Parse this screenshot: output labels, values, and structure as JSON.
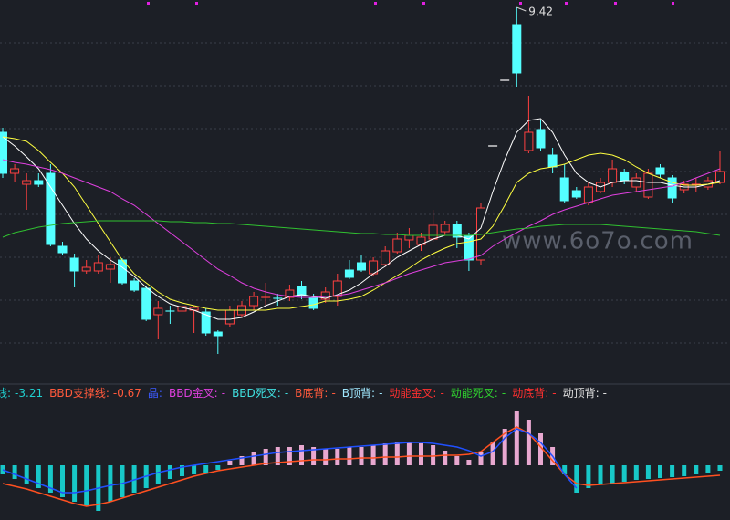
{
  "chart_data": [
    {
      "type": "candlestick",
      "watermark": "www.6o7o.com",
      "up_color": "#ff4040",
      "down_color": "#54ffff",
      "ylim": [
        5.3,
        9.5
      ],
      "open": [
        8.05,
        7.6,
        7.48,
        7.52,
        7.6,
        6.8,
        6.67,
        6.53,
        6.53,
        6.55,
        6.65,
        6.42,
        6.34,
        6.05,
        6.1,
        6.09,
        6.1,
        6.08,
        5.86,
        5.95,
        6.05,
        6.15,
        6.23,
        6.24,
        6.24,
        6.36,
        6.24,
        6.22,
        6.25,
        6.54,
        6.62,
        6.5,
        6.6,
        6.74,
        6.87,
        6.82,
        6.88,
        6.96,
        7.04,
        6.92,
        6.65,
        7.9,
        8.62,
        9.23,
        7.85,
        8.08,
        7.8,
        7.55,
        7.41,
        7.28,
        7.4,
        7.5,
        7.61,
        7.45,
        7.34,
        7.66,
        7.55,
        7.42,
        7.47,
        7.45,
        7.5
      ],
      "high": [
        8.1,
        7.7,
        7.6,
        7.6,
        7.7,
        6.85,
        6.72,
        6.65,
        6.7,
        6.68,
        6.67,
        6.45,
        6.36,
        6.2,
        6.15,
        6.2,
        6.15,
        6.12,
        5.88,
        6.15,
        6.2,
        6.3,
        6.4,
        6.28,
        6.38,
        6.42,
        6.28,
        6.35,
        6.5,
        6.65,
        6.7,
        6.68,
        6.8,
        6.95,
        7.0,
        6.95,
        7.2,
        7.08,
        7.08,
        6.95,
        7.28,
        7.9,
        8.62,
        9.42,
        8.45,
        8.18,
        7.88,
        7.7,
        7.45,
        7.5,
        7.55,
        7.75,
        7.65,
        7.6,
        7.65,
        7.7,
        7.58,
        7.52,
        7.55,
        7.56,
        7.85
      ],
      "low": [
        7.55,
        7.5,
        7.2,
        7.45,
        6.8,
        6.7,
        6.35,
        6.5,
        6.5,
        6.4,
        6.38,
        6.3,
        5.98,
        5.78,
        5.95,
        5.98,
        5.85,
        5.82,
        5.62,
        5.92,
        6.02,
        6.1,
        6.15,
        6.15,
        6.2,
        6.22,
        6.1,
        6.18,
        6.15,
        6.44,
        6.52,
        6.48,
        6.58,
        6.72,
        6.78,
        6.75,
        6.85,
        6.92,
        6.78,
        6.53,
        6.6,
        7.9,
        8.62,
        8.55,
        7.82,
        7.85,
        7.6,
        7.28,
        7.32,
        7.25,
        7.38,
        7.45,
        7.48,
        7.4,
        7.32,
        7.55,
        7.28,
        7.38,
        7.4,
        7.42,
        7.48
      ],
      "close": [
        7.6,
        7.65,
        7.52,
        7.48,
        6.82,
        6.73,
        6.53,
        6.57,
        6.62,
        6.6,
        6.4,
        6.32,
        6.0,
        6.12,
        6.09,
        6.14,
        6.13,
        5.85,
        5.82,
        6.1,
        6.15,
        6.25,
        6.24,
        6.23,
        6.32,
        6.26,
        6.12,
        6.3,
        6.42,
        6.46,
        6.54,
        6.64,
        6.75,
        6.88,
        6.92,
        6.9,
        7.03,
        7.04,
        6.9,
        6.65,
        7.22,
        7.9,
        8.62,
        8.7,
        8.05,
        7.88,
        7.67,
        7.3,
        7.34,
        7.45,
        7.5,
        7.65,
        7.52,
        7.55,
        7.6,
        7.59,
        7.33,
        7.48,
        7.48,
        7.52,
        7.62
      ],
      "lines": [
        {
          "color": "#ffffff",
          "values": [
            8.0,
            7.9,
            7.78,
            7.65,
            7.45,
            7.25,
            7.05,
            6.88,
            6.75,
            6.65,
            6.57,
            6.47,
            6.35,
            6.25,
            6.17,
            6.13,
            6.1,
            6.05,
            6.0,
            6.0,
            6.02,
            6.08,
            6.15,
            6.2,
            6.25,
            6.27,
            6.25,
            6.23,
            6.27,
            6.32,
            6.4,
            6.5,
            6.58,
            6.68,
            6.75,
            6.82,
            6.88,
            6.92,
            6.92,
            6.88,
            7.0,
            7.4,
            7.75,
            8.05,
            8.18,
            8.2,
            8.05,
            7.8,
            7.6,
            7.5,
            7.45,
            7.5,
            7.52,
            7.52,
            7.5,
            7.5,
            7.47,
            7.45,
            7.45,
            7.48,
            7.52
          ]
        },
        {
          "color": "#ffff40",
          "values": [
            8.0,
            7.98,
            7.95,
            7.85,
            7.72,
            7.6,
            7.45,
            7.25,
            7.05,
            6.85,
            6.65,
            6.5,
            6.4,
            6.3,
            6.22,
            6.18,
            6.15,
            6.12,
            6.1,
            6.1,
            6.1,
            6.1,
            6.1,
            6.12,
            6.12,
            6.14,
            6.16,
            6.2,
            6.2,
            6.22,
            6.25,
            6.32,
            6.4,
            6.48,
            6.56,
            6.65,
            6.72,
            6.78,
            6.83,
            6.85,
            6.88,
            7.02,
            7.25,
            7.5,
            7.6,
            7.65,
            7.67,
            7.7,
            7.75,
            7.8,
            7.82,
            7.8,
            7.75,
            7.67,
            7.6,
            7.55,
            7.5,
            7.47,
            7.47,
            7.48,
            7.5
          ]
        },
        {
          "color": "#e040e0",
          "values": [
            7.75,
            7.72,
            7.7,
            7.67,
            7.64,
            7.6,
            7.55,
            7.5,
            7.45,
            7.4,
            7.32,
            7.25,
            7.15,
            7.05,
            6.95,
            6.85,
            6.75,
            6.65,
            6.55,
            6.48,
            6.4,
            6.34,
            6.3,
            6.27,
            6.25,
            6.24,
            6.24,
            6.25,
            6.26,
            6.28,
            6.32,
            6.36,
            6.4,
            6.45,
            6.5,
            6.54,
            6.58,
            6.62,
            6.64,
            6.66,
            6.7,
            6.8,
            6.88,
            6.95,
            7.02,
            7.08,
            7.15,
            7.2,
            7.24,
            7.28,
            7.32,
            7.36,
            7.38,
            7.4,
            7.42,
            7.44,
            7.46,
            7.5,
            7.55,
            7.6,
            7.65
          ]
        },
        {
          "color": "#30c030",
          "values": [
            6.9,
            6.95,
            6.98,
            7.01,
            7.03,
            7.05,
            7.06,
            7.07,
            7.08,
            7.08,
            7.08,
            7.08,
            7.08,
            7.08,
            7.07,
            7.07,
            7.06,
            7.06,
            7.05,
            7.05,
            7.04,
            7.03,
            7.02,
            7.01,
            7.0,
            6.99,
            6.98,
            6.97,
            6.96,
            6.95,
            6.94,
            6.94,
            6.93,
            6.93,
            6.92,
            6.92,
            6.92,
            6.92,
            6.92,
            6.92,
            6.93,
            6.95,
            6.97,
            6.99,
            7.0,
            7.02,
            7.03,
            7.04,
            7.04,
            7.04,
            7.04,
            7.03,
            7.02,
            7.01,
            7.0,
            6.99,
            6.98,
            6.97,
            6.96,
            6.94,
            6.92
          ]
        }
      ]
    },
    {
      "type": "bar",
      "legend": [
        {
          "name": "线:",
          "value": -3.21,
          "color": "#20d0d0"
        },
        {
          "name": "BBD支撑线:",
          "value": -0.67,
          "color": "#ff5a3c"
        },
        {
          "name": "晶:",
          "value": "",
          "color": "#3c5aff"
        },
        {
          "name": "BBD金叉:",
          "value": "-",
          "color": "#e040e0"
        },
        {
          "name": "BBD死叉:",
          "value": "-",
          "color": "#40e0e0"
        },
        {
          "name": "B底背:",
          "value": "-",
          "color": "#ff5a3c"
        },
        {
          "name": "B顶背:",
          "value": "-",
          "color": "#a0e8ff"
        },
        {
          "name": "动能金叉:",
          "value": "-",
          "color": "#ff3030"
        },
        {
          "name": "动能死叉:",
          "value": "-",
          "color": "#30d030"
        },
        {
          "name": "动底背:",
          "value": "-",
          "color": "#ff3030"
        },
        {
          "name": "动顶背:",
          "value": "-",
          "color": "#e0e0e0"
        }
      ],
      "pos_color": "#e8a8d0",
      "neg_color": "#18c8c8",
      "ylim": [
        -6,
        7
      ],
      "values": [
        -1.0,
        -1.5,
        -2.0,
        -2.5,
        -3.0,
        -3.5,
        -4.0,
        -4.5,
        -5.0,
        -4.0,
        -3.5,
        -3.0,
        -2.5,
        -2.0,
        -1.5,
        -1.2,
        -1.0,
        -0.8,
        -0.5,
        0.5,
        1.0,
        1.5,
        1.8,
        2.0,
        2.0,
        2.2,
        2.0,
        1.8,
        1.8,
        2.0,
        2.0,
        2.2,
        2.4,
        2.6,
        2.6,
        2.4,
        2.2,
        1.6,
        1.0,
        0.6,
        1.5,
        2.5,
        4.0,
        6.0,
        5.0,
        3.5,
        2.0,
        -1.0,
        -3.0,
        -2.5,
        -2.0,
        -2.0,
        -1.8,
        -1.6,
        -1.5,
        -1.4,
        -1.3,
        -1.2,
        -1.0,
        -0.8,
        -0.6
      ],
      "lines": [
        {
          "color": "#ff5020",
          "values": [
            -2.0,
            -2.3,
            -2.6,
            -3.0,
            -3.4,
            -3.8,
            -4.2,
            -4.5,
            -4.3,
            -4.0,
            -3.6,
            -3.2,
            -2.8,
            -2.4,
            -2.0,
            -1.6,
            -1.2,
            -0.9,
            -0.6,
            -0.4,
            -0.2,
            0.0,
            0.2,
            0.3,
            0.4,
            0.5,
            0.6,
            0.6,
            0.7,
            0.7,
            0.8,
            0.8,
            0.9,
            0.9,
            1.0,
            1.0,
            1.0,
            1.1,
            1.1,
            1.2,
            1.5,
            2.5,
            3.5,
            4.2,
            3.5,
            2.0,
            0.5,
            -1.0,
            -2.0,
            -2.2,
            -2.1,
            -2.0,
            -1.9,
            -1.8,
            -1.7,
            -1.6,
            -1.5,
            -1.4,
            -1.3,
            -1.2,
            -1.1
          ]
        },
        {
          "color": "#2050ff",
          "values": [
            -0.5,
            -1.0,
            -1.5,
            -2.0,
            -2.5,
            -3.0,
            -3.0,
            -2.8,
            -2.5,
            -2.2,
            -2.0,
            -1.6,
            -1.2,
            -0.8,
            -0.5,
            -0.2,
            0.0,
            0.2,
            0.4,
            0.6,
            0.8,
            1.0,
            1.2,
            1.4,
            1.5,
            1.6,
            1.7,
            1.8,
            1.9,
            2.0,
            2.1,
            2.2,
            2.3,
            2.4,
            2.5,
            2.5,
            2.4,
            2.2,
            2.0,
            1.6,
            1.0,
            1.5,
            3.0,
            4.0,
            3.5,
            2.5,
            1.0,
            -1.0,
            -2.5,
            null,
            null,
            null,
            null,
            null,
            null,
            null,
            null,
            null,
            null,
            null,
            null
          ]
        }
      ]
    }
  ]
}
